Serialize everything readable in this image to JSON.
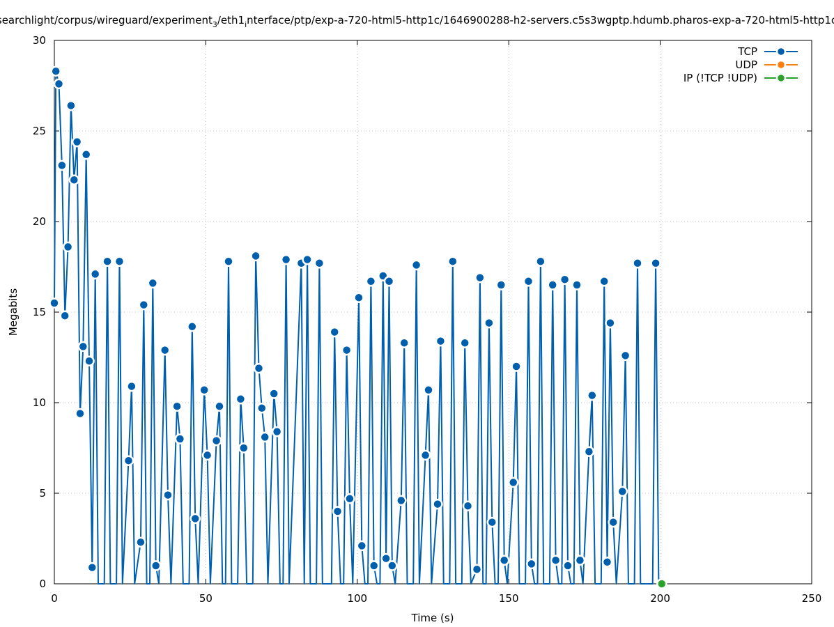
{
  "chart_data": {
    "type": "line",
    "title": "searchlight/corpus/wireguard/experiment",
    "title_sub_1": "3",
    "title_mid": "/eth1",
    "title_sub_2": "i",
    "title_rest": "nterface/ptp/exp-a-720-html5-http1c/1646900288-h2-servers.c5s3wgptp.hdumb.pharos-exp-a-720-html5-http1c",
    "xlabel": "Time (s)",
    "ylabel": "Megabits",
    "xlim": [
      0,
      250
    ],
    "ylim": [
      0,
      30
    ],
    "x_ticks": [
      0,
      50,
      100,
      150,
      200,
      250
    ],
    "y_ticks": [
      0,
      5,
      10,
      15,
      20,
      25,
      30
    ],
    "grid": true,
    "legend_position": "top-right",
    "colors": {
      "TCP": "#005fad",
      "UDP": "#ff7f0e",
      "IP": "#2ca02c"
    },
    "series": [
      {
        "name": "TCP",
        "points": [
          [
            0,
            15.5
          ],
          [
            0.5,
            28.3
          ],
          [
            1.5,
            27.6
          ],
          [
            2.5,
            23.1
          ],
          [
            3.5,
            14.8
          ],
          [
            4.5,
            18.6
          ],
          [
            5.5,
            26.4
          ],
          [
            6.5,
            22.3
          ],
          [
            7.5,
            24.4
          ],
          [
            8.5,
            9.4
          ],
          [
            9.5,
            13.1
          ],
          [
            10.5,
            23.7
          ],
          [
            11.5,
            12.3
          ],
          [
            12.5,
            0.9
          ],
          [
            13.5,
            17.1
          ],
          [
            14.5,
            0
          ],
          [
            16.5,
            0
          ],
          [
            17.5,
            17.8
          ],
          [
            18.5,
            0
          ],
          [
            20.5,
            0
          ],
          [
            21.5,
            17.8
          ],
          [
            22.5,
            0
          ],
          [
            24.5,
            6.8
          ],
          [
            25.5,
            10.9
          ],
          [
            26.5,
            0
          ],
          [
            28.5,
            2.3
          ],
          [
            29.5,
            15.4
          ],
          [
            30.5,
            0
          ],
          [
            31.5,
            0
          ],
          [
            32.5,
            16.6
          ],
          [
            33.5,
            1.0
          ],
          [
            34.5,
            0
          ],
          [
            36.5,
            12.9
          ],
          [
            37.5,
            4.9
          ],
          [
            38.5,
            0
          ],
          [
            40.5,
            9.8
          ],
          [
            41.5,
            8.0
          ],
          [
            42.5,
            0
          ],
          [
            44.5,
            0
          ],
          [
            45.5,
            14.2
          ],
          [
            46.5,
            3.6
          ],
          [
            47.5,
            0
          ],
          [
            49.5,
            10.7
          ],
          [
            50.5,
            7.1
          ],
          [
            51.5,
            0
          ],
          [
            53.5,
            7.9
          ],
          [
            54.5,
            9.8
          ],
          [
            55.5,
            0
          ],
          [
            56.5,
            0
          ],
          [
            57.5,
            17.8
          ],
          [
            58.5,
            0
          ],
          [
            60.5,
            0
          ],
          [
            61.5,
            10.2
          ],
          [
            62.5,
            7.5
          ],
          [
            63.5,
            0
          ],
          [
            65.5,
            0
          ],
          [
            66.5,
            18.1
          ],
          [
            67.5,
            11.9
          ],
          [
            68.5,
            9.7
          ],
          [
            69.5,
            8.1
          ],
          [
            70.5,
            0
          ],
          [
            72.5,
            10.5
          ],
          [
            73.5,
            8.4
          ],
          [
            74.5,
            0
          ],
          [
            75.5,
            0
          ],
          [
            76.5,
            17.9
          ],
          [
            77.5,
            0
          ],
          [
            81.5,
            17.7
          ],
          [
            82.5,
            0
          ],
          [
            83.5,
            17.9
          ],
          [
            84.5,
            0
          ],
          [
            86.5,
            0
          ],
          [
            87.5,
            17.7
          ],
          [
            88.5,
            0
          ],
          [
            91.5,
            0
          ],
          [
            92.5,
            13.9
          ],
          [
            93.5,
            4.0
          ],
          [
            94.5,
            0
          ],
          [
            95.5,
            0
          ],
          [
            96.5,
            12.9
          ],
          [
            97.5,
            4.7
          ],
          [
            98.5,
            0
          ],
          [
            100.5,
            15.8
          ],
          [
            101.5,
            2.1
          ],
          [
            102.5,
            0
          ],
          [
            103.5,
            0
          ],
          [
            104.5,
            16.7
          ],
          [
            105.5,
            1.0
          ],
          [
            106.5,
            0
          ],
          [
            107.5,
            0
          ],
          [
            108.5,
            17.0
          ],
          [
            109.5,
            1.4
          ],
          [
            110.5,
            16.7
          ],
          [
            111.5,
            1.0
          ],
          [
            112.5,
            0
          ],
          [
            114.5,
            4.6
          ],
          [
            115.5,
            13.3
          ],
          [
            116.5,
            0
          ],
          [
            118.5,
            0
          ],
          [
            119.5,
            17.6
          ],
          [
            120.5,
            0
          ],
          [
            122.5,
            7.1
          ],
          [
            123.5,
            10.7
          ],
          [
            124.5,
            0
          ],
          [
            126.5,
            4.4
          ],
          [
            127.5,
            13.4
          ],
          [
            128.5,
            0
          ],
          [
            130.5,
            0
          ],
          [
            131.5,
            17.8
          ],
          [
            132.5,
            0
          ],
          [
            134.5,
            0
          ],
          [
            135.5,
            13.3
          ],
          [
            136.5,
            4.3
          ],
          [
            137.5,
            0
          ],
          [
            139.5,
            0.8
          ],
          [
            140.5,
            16.9
          ],
          [
            141.5,
            0
          ],
          [
            142.5,
            0
          ],
          [
            143.5,
            14.4
          ],
          [
            144.5,
            3.4
          ],
          [
            145.5,
            0
          ],
          [
            146.5,
            0
          ],
          [
            147.5,
            16.5
          ],
          [
            148.5,
            1.3
          ],
          [
            149.5,
            0
          ],
          [
            151.5,
            5.6
          ],
          [
            152.5,
            12.0
          ],
          [
            153.5,
            0
          ],
          [
            155.5,
            0
          ],
          [
            156.5,
            16.7
          ],
          [
            157.5,
            1.1
          ],
          [
            158.5,
            0
          ],
          [
            159.5,
            0
          ],
          [
            160.5,
            17.8
          ],
          [
            161.5,
            0
          ],
          [
            163.5,
            0
          ],
          [
            164.5,
            16.5
          ],
          [
            165.5,
            1.3
          ],
          [
            166.5,
            0
          ],
          [
            167.5,
            0
          ],
          [
            168.5,
            16.8
          ],
          [
            169.5,
            1.0
          ],
          [
            170.5,
            0
          ],
          [
            171.5,
            0
          ],
          [
            172.5,
            16.5
          ],
          [
            173.5,
            1.3
          ],
          [
            174.5,
            0
          ],
          [
            176.5,
            7.3
          ],
          [
            177.5,
            10.4
          ],
          [
            178.5,
            0
          ],
          [
            180.5,
            0
          ],
          [
            181.5,
            16.7
          ],
          [
            182.5,
            1.2
          ],
          [
            183.5,
            14.4
          ],
          [
            184.5,
            3.4
          ],
          [
            185.5,
            0
          ],
          [
            187.5,
            5.1
          ],
          [
            188.5,
            12.6
          ],
          [
            189.5,
            0
          ],
          [
            191.5,
            0
          ],
          [
            192.5,
            17.7
          ],
          [
            193.5,
            0
          ],
          [
            197.5,
            0
          ],
          [
            198.5,
            17.7
          ],
          [
            199.5,
            0
          ]
        ]
      },
      {
        "name": "UDP",
        "points": []
      },
      {
        "name": "IP (!TCP  !UDP)",
        "points": [
          [
            200.5,
            0
          ]
        ]
      }
    ]
  }
}
